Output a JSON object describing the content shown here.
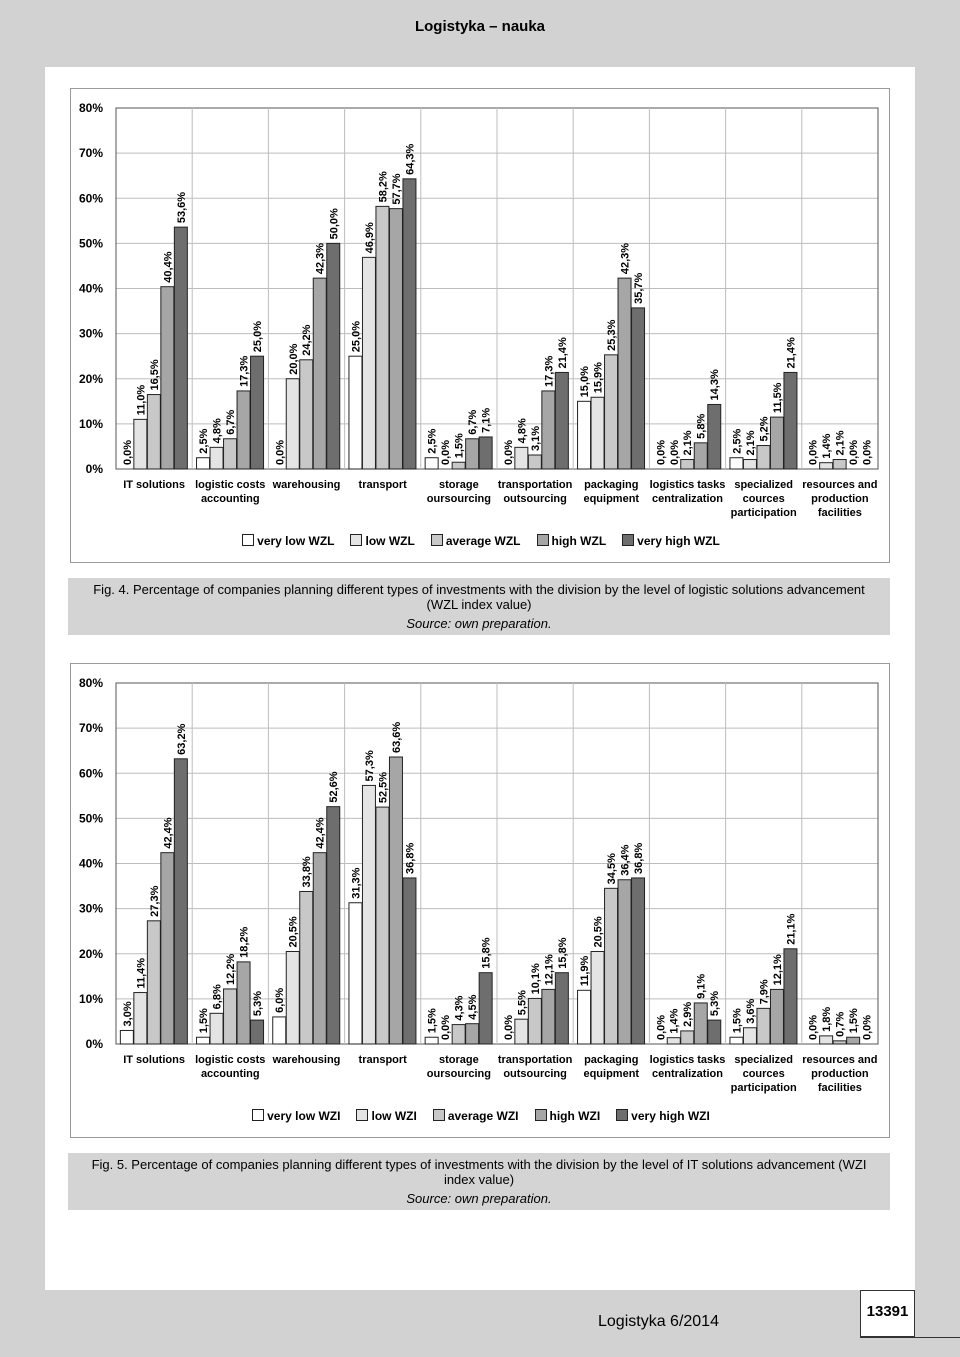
{
  "header": "Logistyka – nauka",
  "chart_data": [
    {
      "type": "bar",
      "grid": true,
      "caption": "Fig. 4. Percentage of companies planning different types of investments with the division by the level of logistic solutions advancement (WZL index value)",
      "source": "Source: own preparation.",
      "categories": [
        "IT solutions",
        "logistic costs\naccounting",
        "warehousing",
        "transport",
        "storage\noursourcing",
        "transportation\noutsourcing",
        "packaging\nequipment",
        "logistics tasks\ncentralization",
        "specialized\ncources\nparticipation",
        "resources and\nproduction\nfacilities"
      ],
      "ylim": [
        0,
        80
      ],
      "yticks": [
        {
          "value": 0,
          "label": "0%"
        },
        {
          "value": 10,
          "label": "10%"
        },
        {
          "value": 20,
          "label": "20%"
        },
        {
          "value": 30,
          "label": "30%"
        },
        {
          "value": 40,
          "label": "40%"
        },
        {
          "value": 50,
          "label": "50%"
        },
        {
          "value": 60,
          "label": "60%"
        },
        {
          "value": 70,
          "label": "70%"
        },
        {
          "value": 80,
          "label": "80%"
        }
      ],
      "series": [
        {
          "name": "very low WZL",
          "color": "#ffffff",
          "values": [
            0,
            2.5,
            0,
            25,
            2.5,
            0,
            15,
            0,
            2.5,
            0
          ],
          "value_labels": [
            "0,0%",
            "2,5%",
            "0,0%",
            "25,0%",
            "2,5%",
            "0,0%",
            "15,0%",
            "0,0%",
            "2,5%",
            "0,0%"
          ]
        },
        {
          "name": "low WZL",
          "color": "#e4e4e4",
          "values": [
            11,
            4.8,
            20,
            46.9,
            0,
            4.8,
            15.9,
            0,
            2.1,
            1.4
          ],
          "value_labels": [
            "11,0%",
            "4,8%",
            "20,0%",
            "46,9%",
            "0,0%",
            "4,8%",
            "15,9%",
            "0,0%",
            "2,1%",
            "1,4%"
          ]
        },
        {
          "name": "average WZL",
          "color": "#c8c8c8",
          "values": [
            16.5,
            6.7,
            24.2,
            58.2,
            1.5,
            3.1,
            25.3,
            2.1,
            5.2,
            2.1
          ],
          "value_labels": [
            "16,5%",
            "6,7%",
            "24,2%",
            "58,2%",
            "1,5%",
            "3,1%",
            "25,3%",
            "2,1%",
            "5,2%",
            "2,1%"
          ]
        },
        {
          "name": "high WZL",
          "color": "#a6a6a6",
          "values": [
            40.4,
            17.3,
            42.3,
            57.7,
            6.7,
            17.3,
            42.3,
            5.8,
            11.5,
            0
          ],
          "value_labels": [
            "40,4%",
            "17,3%",
            "42,3%",
            "57,7%",
            "6,7%",
            "17,3%",
            "42,3%",
            "5,8%",
            "11,5%",
            "0,0%"
          ]
        },
        {
          "name": "very high WZL",
          "color": "#6e6e6e",
          "values": [
            53.6,
            25,
            50,
            64.3,
            7.1,
            21.4,
            35.7,
            14.3,
            21.4,
            0
          ],
          "value_labels": [
            "53,6%",
            "25,0%",
            "50,0%",
            "64,3%",
            "7,1%",
            "21,4%",
            "35,7%",
            "14,3%",
            "21,4%",
            "0,0%"
          ]
        }
      ]
    },
    {
      "type": "bar",
      "grid": true,
      "caption": "Fig. 5. Percentage of companies planning different types of investments with the division by the level of IT solutions advancement (WZI index value)",
      "source": "Source: own preparation.",
      "categories": [
        "IT solutions",
        "logistic costs\naccounting",
        "warehousing",
        "transport",
        "storage\noursourcing",
        "transportation\noutsourcing",
        "packaging\nequipment",
        "logistics tasks\ncentralization",
        "specialized\ncources\nparticipation",
        "resources and\nproduction\nfacilities"
      ],
      "ylim": [
        0,
        80
      ],
      "yticks": [
        {
          "value": 0,
          "label": "0%"
        },
        {
          "value": 10,
          "label": "10%"
        },
        {
          "value": 20,
          "label": "20%"
        },
        {
          "value": 30,
          "label": "30%"
        },
        {
          "value": 40,
          "label": "40%"
        },
        {
          "value": 50,
          "label": "50%"
        },
        {
          "value": 60,
          "label": "60%"
        },
        {
          "value": 70,
          "label": "70%"
        },
        {
          "value": 80,
          "label": "80%"
        }
      ],
      "series": [
        {
          "name": "very low WZI",
          "color": "#ffffff",
          "values": [
            3,
            1.5,
            6,
            31.3,
            1.5,
            0,
            11.9,
            0,
            1.5,
            0
          ],
          "value_labels": [
            "3,0%",
            "1,5%",
            "6,0%",
            "31,3%",
            "1,5%",
            "0,0%",
            "11,9%",
            "0,0%",
            "1,5%",
            "0,0%"
          ]
        },
        {
          "name": "low WZI",
          "color": "#e4e4e4",
          "values": [
            11.4,
            6.8,
            20.5,
            57.3,
            0,
            5.5,
            20.5,
            1.4,
            3.6,
            1.8
          ],
          "value_labels": [
            "11,4%",
            "6,8%",
            "20,5%",
            "57,3%",
            "0,0%",
            "5,5%",
            "20,5%",
            "1,4%",
            "3,6%",
            "1,8%"
          ]
        },
        {
          "name": "average WZI",
          "color": "#c8c8c8",
          "values": [
            27.3,
            12.2,
            33.8,
            52.5,
            4.3,
            10.1,
            34.5,
            2.9,
            7.9,
            0.7
          ],
          "value_labels": [
            "27,3%",
            "12,2%",
            "33,8%",
            "52,5%",
            "4,3%",
            "10,1%",
            "34,5%",
            "2,9%",
            "7,9%",
            "0,7%"
          ]
        },
        {
          "name": "high WZI",
          "color": "#a6a6a6",
          "values": [
            42.4,
            18.2,
            42.4,
            63.6,
            4.5,
            12.1,
            36.4,
            9.1,
            12.1,
            1.5
          ],
          "value_labels": [
            "42,4%",
            "18,2%",
            "42,4%",
            "63,6%",
            "4,5%",
            "12,1%",
            "36,4%",
            "9,1%",
            "12,1%",
            "1,5%"
          ]
        },
        {
          "name": "very high WZI",
          "color": "#6e6e6e",
          "values": [
            63.2,
            5.3,
            52.6,
            36.8,
            15.8,
            15.8,
            36.8,
            5.3,
            21.1,
            0
          ],
          "value_labels": [
            "63,2%",
            "5,3%",
            "52,6%",
            "36,8%",
            "15,8%",
            "15,8%",
            "36,8%",
            "5,3%",
            "21,1%",
            "0,0%"
          ]
        }
      ]
    }
  ],
  "footer": {
    "journal": "Logistyka 6/2014",
    "page": "13391"
  }
}
